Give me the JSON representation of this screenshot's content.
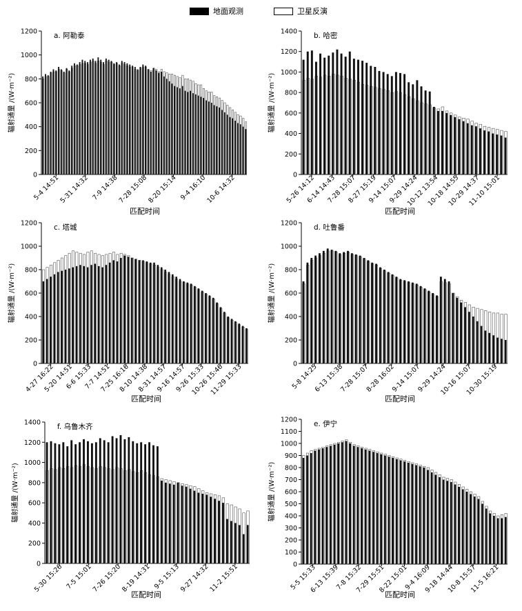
{
  "legend": {
    "ground_label": "地面观测",
    "satellite_label": "卫星反演",
    "ground_color": "#000000",
    "satellite_color": "#ffffff"
  },
  "chart_data": [
    {
      "type": "bar",
      "panel_title": "a. 阿勒泰",
      "xlabel": "匹配时间",
      "ylabel": "辐射通量 /(W·m⁻²)",
      "ylim": [
        0,
        1200
      ],
      "yticks": [
        0,
        200,
        400,
        600,
        800,
        1000,
        1200
      ],
      "xtick_labels": [
        "5-4 14:51",
        "5-31 14:32",
        "7-9 14:38",
        "7-28 15:08",
        "8-20 15:14",
        "9-4 16:10",
        "10-6 14:32"
      ],
      "series": [
        {
          "name": "地面观测",
          "values": [
            820,
            840,
            830,
            860,
            880,
            870,
            900,
            880,
            860,
            890,
            870,
            910,
            930,
            920,
            940,
            960,
            950,
            940,
            960,
            970,
            950,
            980,
            960,
            940,
            970,
            960,
            950,
            930,
            940,
            920,
            950,
            940,
            930,
            920,
            910,
            900,
            880,
            900,
            920,
            910,
            880,
            860,
            890,
            870,
            850,
            860,
            820,
            800,
            780,
            760,
            740,
            730,
            720,
            740,
            700,
            690,
            700,
            680,
            670,
            660,
            650,
            640,
            620,
            610,
            600,
            580,
            570,
            560,
            540,
            520,
            500,
            480,
            470,
            450,
            430,
            420,
            400,
            380
          ]
        },
        {
          "name": "卫星反演",
          "values": [
            800,
            820,
            820,
            850,
            860,
            860,
            880,
            870,
            850,
            880,
            860,
            890,
            910,
            910,
            920,
            930,
            930,
            920,
            940,
            950,
            930,
            950,
            940,
            920,
            950,
            940,
            940,
            920,
            930,
            910,
            930,
            920,
            910,
            900,
            900,
            880,
            870,
            890,
            900,
            900,
            880,
            870,
            890,
            880,
            860,
            880,
            860,
            850,
            840,
            840,
            830,
            820,
            810,
            830,
            800,
            800,
            790,
            780,
            760,
            750,
            750,
            720,
            700,
            690,
            690,
            660,
            650,
            640,
            620,
            600,
            580,
            560,
            540,
            520,
            500,
            490,
            470,
            440
          ]
        }
      ]
    },
    {
      "type": "bar",
      "panel_title": "b. 哈密",
      "xlabel": "匹配时间",
      "ylabel": "辐射通量 /(W·m⁻²)",
      "ylim": [
        0,
        1400
      ],
      "yticks": [
        0,
        200,
        400,
        600,
        800,
        1000,
        1200,
        1400
      ],
      "xtick_labels": [
        "5-26 14:12",
        "6-14 14:43",
        "7-28 15:07",
        "8-27 15:19",
        "9-14 15:07",
        "9-29 14:24",
        "10-12 13:54",
        "10-18 14:55",
        "10-29 14:37",
        "11-10 15:01"
      ],
      "series": [
        {
          "name": "地面观测",
          "values": [
            1120,
            1200,
            1210,
            1100,
            1180,
            1140,
            1160,
            1190,
            1220,
            1180,
            1150,
            1200,
            1130,
            1120,
            1110,
            1090,
            1060,
            1050,
            1010,
            1000,
            980,
            960,
            1000,
            990,
            980,
            900,
            880,
            920,
            860,
            820,
            810,
            660,
            620,
            620,
            600,
            580,
            560,
            540,
            520,
            500,
            480,
            470,
            450,
            430,
            420,
            400,
            390,
            380,
            360
          ]
        },
        {
          "name": "卫星反演",
          "values": [
            920,
            940,
            930,
            960,
            950,
            970,
            960,
            980,
            970,
            960,
            940,
            930,
            920,
            900,
            880,
            870,
            860,
            850,
            840,
            830,
            820,
            800,
            810,
            800,
            780,
            760,
            740,
            720,
            700,
            690,
            680,
            650,
            640,
            660,
            620,
            600,
            580,
            560,
            550,
            540,
            520,
            500,
            490,
            470,
            460,
            450,
            440,
            430,
            420
          ]
        }
      ]
    },
    {
      "type": "bar",
      "panel_title": "c. 塔城",
      "xlabel": "匹配时间",
      "ylabel": "辐射通量 /(W·m⁻²)",
      "ylim": [
        0,
        1200
      ],
      "yticks": [
        0,
        200,
        400,
        600,
        800,
        1000,
        1200
      ],
      "xtick_labels": [
        "4-27 16:22",
        "5-20 14:51",
        "6-6 15:33",
        "7-7 14:51",
        "7-25 16:16",
        "8-10 14:38",
        "8-31 14:57",
        "9-16 14:57",
        "9-26 15:33",
        "10-26 15:46",
        "11-29 15:33"
      ],
      "series": [
        {
          "name": "地面观测",
          "values": [
            700,
            720,
            740,
            760,
            780,
            790,
            800,
            810,
            820,
            830,
            840,
            830,
            820,
            840,
            850,
            830,
            820,
            840,
            860,
            880,
            870,
            900,
            920,
            910,
            900,
            890,
            880,
            880,
            870,
            860,
            860,
            840,
            820,
            800,
            780,
            760,
            740,
            720,
            700,
            690,
            680,
            660,
            640,
            620,
            600,
            580,
            560,
            520,
            480,
            440,
            400,
            380,
            360,
            340,
            320,
            300
          ]
        },
        {
          "name": "卫星反演",
          "values": [
            800,
            820,
            840,
            860,
            880,
            900,
            920,
            940,
            960,
            950,
            940,
            930,
            950,
            960,
            940,
            930,
            920,
            930,
            940,
            950,
            930,
            940,
            930,
            920,
            900,
            890,
            880,
            870,
            860,
            850,
            840,
            820,
            800,
            780,
            760,
            740,
            720,
            700,
            690,
            680,
            670,
            650,
            630,
            610,
            590,
            570,
            550,
            510,
            470,
            430,
            390,
            370,
            350,
            330,
            310,
            290
          ]
        }
      ]
    },
    {
      "type": "bar",
      "panel_title": "d. 吐鲁番",
      "xlabel": "匹配时间",
      "ylabel": "辐射通量 /(W·m⁻²)",
      "ylim": [
        0,
        1200
      ],
      "yticks": [
        0,
        200,
        400,
        600,
        800,
        1000,
        1200
      ],
      "xtick_labels": [
        "5-8 14:25",
        "6-13 15:38",
        "7-28 15:07",
        "8-28 16:02",
        "9-14 15:07",
        "9-29 14:24",
        "10-16 15:07",
        "10-30 15:19"
      ],
      "series": [
        {
          "name": "地面观测",
          "values": [
            700,
            860,
            900,
            920,
            940,
            960,
            980,
            970,
            960,
            940,
            950,
            960,
            940,
            930,
            920,
            900,
            880,
            860,
            850,
            820,
            800,
            780,
            760,
            740,
            720,
            710,
            700,
            690,
            680,
            660,
            640,
            620,
            600,
            580,
            740,
            720,
            700,
            600,
            560,
            520,
            480,
            440,
            400,
            360,
            320,
            280,
            260,
            240,
            220,
            210,
            200
          ]
        },
        {
          "name": "卫星反演",
          "values": [
            680,
            840,
            880,
            900,
            920,
            940,
            960,
            960,
            950,
            930,
            940,
            950,
            930,
            920,
            910,
            890,
            870,
            850,
            840,
            810,
            790,
            770,
            750,
            730,
            710,
            700,
            690,
            680,
            670,
            650,
            630,
            610,
            590,
            570,
            700,
            690,
            680,
            600,
            570,
            540,
            520,
            500,
            480,
            470,
            460,
            450,
            440,
            430,
            430,
            420,
            420
          ]
        }
      ]
    },
    {
      "type": "bar",
      "panel_title": "f. 乌鲁木齐",
      "xlabel": "匹配时间",
      "ylabel": "辐射通量 /(W·m⁻²)",
      "ylim": [
        0,
        1400
      ],
      "yticks": [
        0,
        200,
        400,
        600,
        800,
        1000,
        1200,
        1400
      ],
      "xtick_labels": [
        "5-30 15:26",
        "7-5 15:01",
        "7-26 15:20",
        "8-19 14:31",
        "9-5 15:13",
        "9-27 14:32",
        "11-2 15:51"
      ],
      "series": [
        {
          "name": "地面观测",
          "values": [
            1200,
            1210,
            1190,
            1180,
            1200,
            1160,
            1220,
            1180,
            1200,
            1230,
            1210,
            1190,
            1200,
            1240,
            1220,
            1200,
            1260,
            1240,
            1270,
            1230,
            1250,
            1210,
            1190,
            1200,
            1180,
            1200,
            1170,
            1160,
            820,
            800,
            790,
            780,
            800,
            770,
            760,
            740,
            720,
            700,
            690,
            680,
            660,
            640,
            620,
            600,
            440,
            420,
            400,
            380,
            290,
            380
          ]
        },
        {
          "name": "卫星反演",
          "values": [
            920,
            940,
            930,
            950,
            940,
            960,
            950,
            970,
            960,
            980,
            960,
            950,
            940,
            960,
            950,
            940,
            930,
            950,
            940,
            920,
            930,
            910,
            900,
            920,
            900,
            880,
            870,
            860,
            840,
            830,
            820,
            810,
            800,
            790,
            780,
            770,
            760,
            740,
            720,
            700,
            690,
            680,
            670,
            650,
            590,
            580,
            560,
            540,
            500,
            520
          ]
        }
      ]
    },
    {
      "type": "bar",
      "panel_title": "e. 伊宁",
      "xlabel": "匹配时间",
      "ylabel": "辐射通量 /(W·m⁻²)",
      "ylim": [
        0,
        1200
      ],
      "yticks": [
        0,
        100,
        200,
        300,
        400,
        500,
        600,
        700,
        800,
        900,
        1000,
        1100,
        1200
      ],
      "xtick_labels": [
        "5-5 15:33",
        "6-13 15:39",
        "7-8 15:32",
        "7-29 15:51",
        "8-22 15:01",
        "9-4 16:09",
        "9-18 14:44",
        "10-8 15:57",
        "11-5 16:21"
      ],
      "series": [
        {
          "name": "地面观测",
          "values": [
            880,
            900,
            920,
            940,
            950,
            960,
            970,
            980,
            990,
            1000,
            1010,
            1020,
            1000,
            980,
            970,
            960,
            950,
            940,
            930,
            920,
            910,
            900,
            890,
            880,
            870,
            860,
            850,
            840,
            830,
            820,
            810,
            800,
            780,
            760,
            740,
            720,
            700,
            690,
            680,
            660,
            640,
            620,
            600,
            580,
            560,
            540,
            500,
            460,
            420,
            400,
            380,
            380,
            390
          ]
        },
        {
          "name": "卫星反演",
          "values": [
            900,
            920,
            940,
            950,
            960,
            970,
            980,
            990,
            1000,
            1010,
            1020,
            1030,
            1010,
            990,
            980,
            970,
            960,
            950,
            940,
            930,
            920,
            910,
            900,
            890,
            880,
            870,
            860,
            850,
            840,
            830,
            820,
            810,
            800,
            780,
            760,
            740,
            720,
            710,
            700,
            680,
            660,
            640,
            620,
            600,
            580,
            560,
            520,
            480,
            440,
            420,
            400,
            410,
            420
          ]
        }
      ]
    }
  ]
}
